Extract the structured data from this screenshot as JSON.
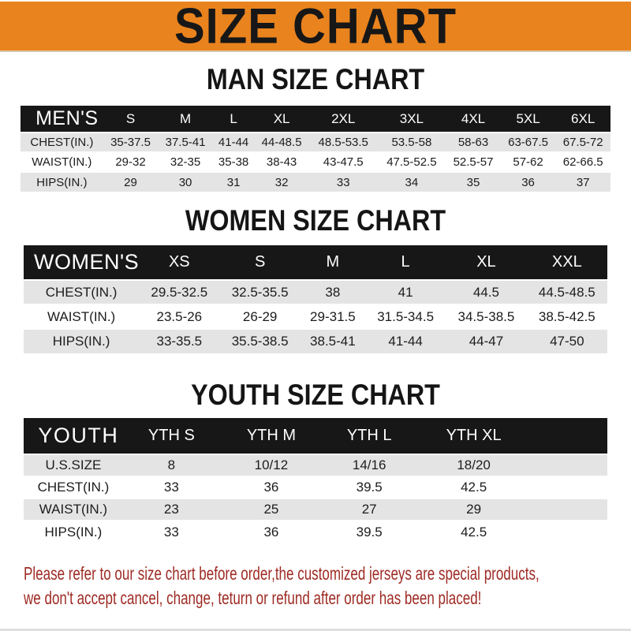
{
  "banner": {
    "title": "SIZE CHART"
  },
  "colors": {
    "banner_bg": "#E9831E",
    "header_bar": "#171717",
    "row_shade": "#E4E4E4",
    "footer_text": "#9E2B24"
  },
  "tables": [
    {
      "name": "men",
      "title": "MAN SIZE CHART",
      "header_label": "MEN'S",
      "columns": [
        "S",
        "M",
        "L",
        "XL",
        "2XL",
        "3XL",
        "4XL",
        "5XL",
        "6XL"
      ],
      "rows": [
        {
          "label": "CHEST(IN.)",
          "values": [
            "35-37.5",
            "37.5-41",
            "41-44",
            "44-48.5",
            "48.5-53.5",
            "53.5-58",
            "58-63",
            "63-67.5",
            "67.5-72"
          ]
        },
        {
          "label": "WAIST(IN.)",
          "values": [
            "29-32",
            "32-35",
            "35-38",
            "38-43",
            "43-47.5",
            "47.5-52.5",
            "52.5-57",
            "57-62",
            "62-66.5"
          ]
        },
        {
          "label": "HIPS(IN.)",
          "values": [
            "29",
            "30",
            "31",
            "32",
            "33",
            "34",
            "35",
            "36",
            "37"
          ]
        }
      ],
      "trailing_space": false
    },
    {
      "name": "women",
      "title": "WOMEN SIZE CHART",
      "header_label": "WOMEN'S",
      "columns": [
        "XS",
        "S",
        "M",
        "L",
        "XL",
        "XXL"
      ],
      "rows": [
        {
          "label": "CHEST(IN.)",
          "values": [
            "29.5-32.5",
            "32.5-35.5",
            "38",
            "41",
            "44.5",
            "44.5-48.5"
          ]
        },
        {
          "label": "WAIST(IN.)",
          "values": [
            "23.5-26",
            "26-29",
            "29-31.5",
            "31.5-34.5",
            "34.5-38.5",
            "38.5-42.5"
          ]
        },
        {
          "label": "HIPS(IN.)",
          "values": [
            "33-35.5",
            "35.5-38.5",
            "38.5-41",
            "41-44",
            "44-47",
            "47-50"
          ]
        }
      ],
      "trailing_space": false
    },
    {
      "name": "youth",
      "title": "YOUTH SIZE CHART",
      "header_label": "YOUTH",
      "columns": [
        "YTH S",
        "YTH M",
        "YTH L",
        "YTH XL"
      ],
      "rows": [
        {
          "label": "U.S.SIZE",
          "values": [
            "8",
            "10/12",
            "14/16",
            "18/20"
          ]
        },
        {
          "label": "CHEST(IN.)",
          "values": [
            "33",
            "36",
            "39.5",
            "42.5"
          ]
        },
        {
          "label": "WAIST(IN.)",
          "values": [
            "23",
            "25",
            "27",
            "29"
          ]
        },
        {
          "label": "HIPS(IN.)",
          "values": [
            "33",
            "36",
            "39.5",
            "42.5"
          ]
        }
      ],
      "trailing_space": true
    }
  ],
  "footer": {
    "line1": "Please refer to our size chart before order,the customized jerseys are special products,",
    "line2": "we don't accept cancel, change, teturn or refund after order has been placed!"
  }
}
